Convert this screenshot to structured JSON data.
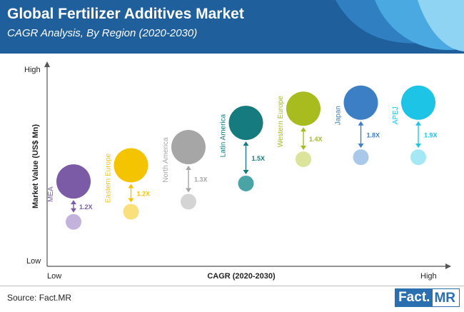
{
  "header": {
    "title": "Global Fertilizer Additives Market",
    "subtitle": "CAGR Analysis, By Region (2020-2030)"
  },
  "footer": {
    "source": "Source: Fact.MR",
    "logo_part1": "Fact.",
    "logo_part2": "MR"
  },
  "chart_data": {
    "type": "scatter",
    "title": "Global Fertilizer Additives Market",
    "subtitle": "CAGR Analysis, By Region (2020-2030)",
    "xlabel": "CAGR (2020-2030)",
    "ylabel": "Market Value (US$ Mn)",
    "x_low_label": "Low",
    "x_high_label": "High",
    "y_low_label": "Low",
    "y_high_label": "High",
    "grid": false,
    "regions": [
      {
        "name": "MEA",
        "multiplier": "1.2X",
        "color": "#7b5aa6",
        "light_color": "#c3b2dc",
        "cagr_rank": 1,
        "value_2020": 0.42,
        "value_2030": 0.22
      },
      {
        "name": "Eastern Europe",
        "multiplier": "1.2X",
        "color": "#f5c400",
        "light_color": "#f9e07a",
        "cagr_rank": 2,
        "value_2020": 0.5,
        "value_2030": 0.27
      },
      {
        "name": "North America",
        "multiplier": "1.3X",
        "color": "#a6a6a6",
        "light_color": "#d4d4d4",
        "cagr_rank": 3,
        "value_2020": 0.59,
        "value_2030": 0.32
      },
      {
        "name": "Latin America",
        "multiplier": "1.5X",
        "color": "#167b7e",
        "light_color": "#4aa3a5",
        "cagr_rank": 4,
        "value_2020": 0.71,
        "value_2030": 0.41
      },
      {
        "name": "Western Europe",
        "multiplier": "1.4X",
        "color": "#a8bb1f",
        "light_color": "#dbe49a",
        "cagr_rank": 5,
        "value_2020": 0.78,
        "value_2030": 0.53
      },
      {
        "name": "Japan",
        "multiplier": "1.8X",
        "color": "#3c7fc4",
        "light_color": "#a9c8ea",
        "cagr_rank": 6,
        "value_2020": 0.81,
        "value_2030": 0.54
      },
      {
        "name": "APEJ",
        "multiplier": "1.9X",
        "color": "#1ec4e6",
        "light_color": "#a5e8f5",
        "cagr_rank": 7,
        "value_2020": 0.81,
        "value_2030": 0.54
      }
    ]
  }
}
